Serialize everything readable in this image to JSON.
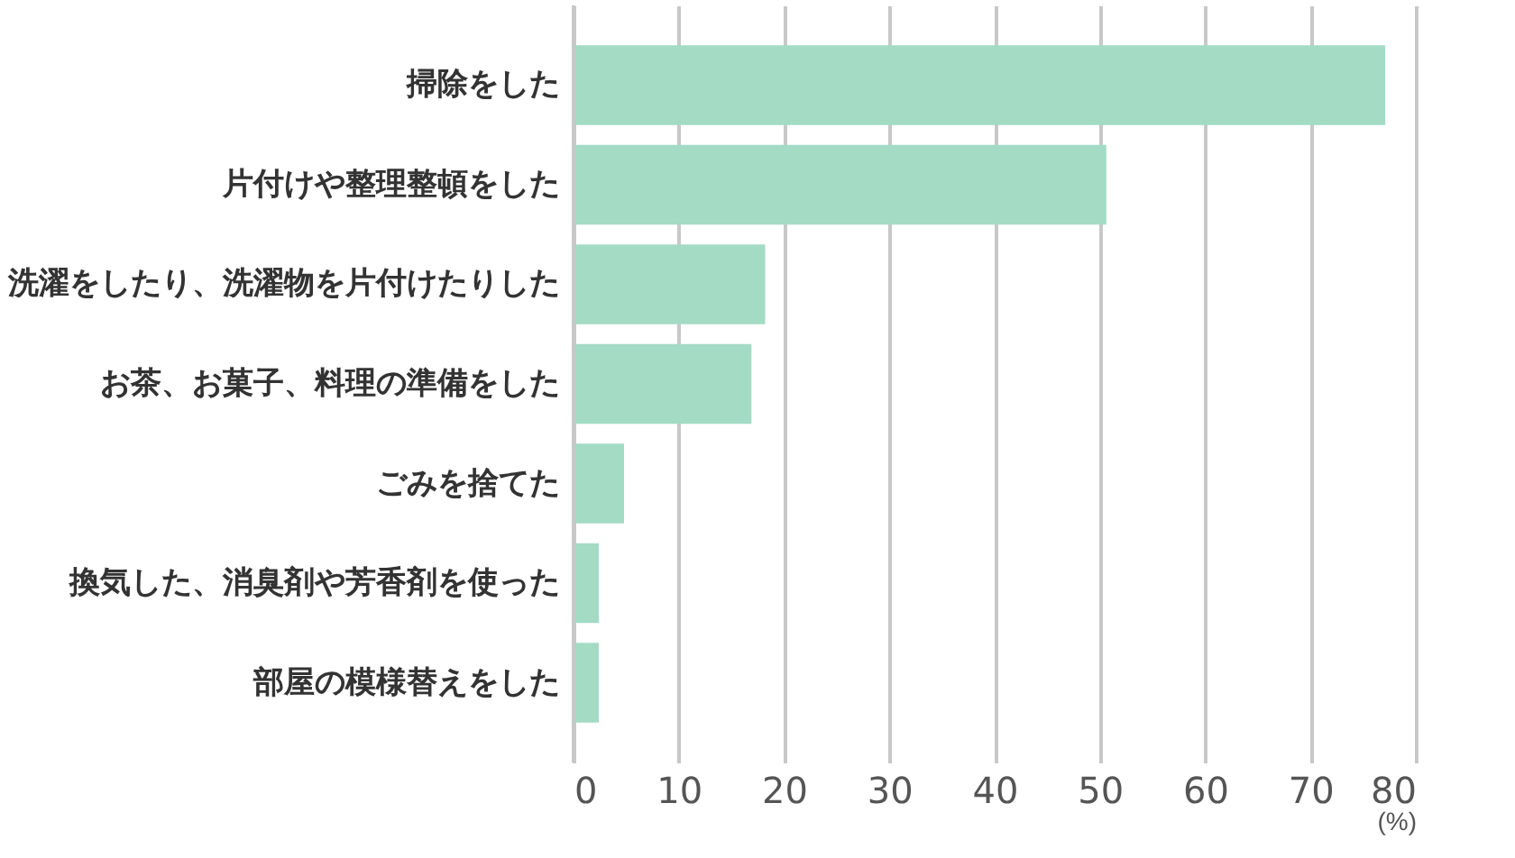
{
  "chart_data": {
    "type": "bar",
    "orientation": "horizontal",
    "categories": [
      "掃除をした",
      "片付けや整理整頓をした",
      "洗濯をしたり、洗濯物を片付けたりした",
      "お茶、お菓子、料理の準備をした",
      "ごみを捨てた",
      "換気した、消臭剤や芳香剤を使った",
      "部屋の模様替えをした"
    ],
    "values": [
      77.1,
      50.6,
      18.2,
      16.9,
      4.8,
      2.4,
      2.4
    ],
    "color": "#a3dbc5",
    "xlabel": "(%)",
    "xlim": [
      0,
      80
    ],
    "xticks": [
      0,
      10,
      20,
      30,
      40,
      50,
      60,
      70,
      80
    ],
    "grid": "x"
  }
}
